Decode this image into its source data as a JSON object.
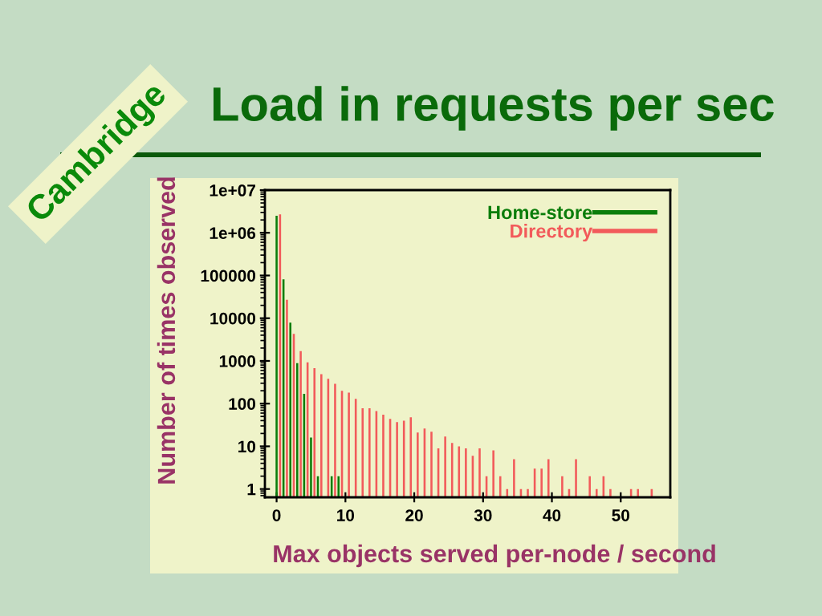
{
  "chart_data": {
    "type": "bar",
    "title": "Load in requests per sec",
    "xlabel": "Max objects served per-node / second",
    "ylabel": "Number of times observed",
    "annotations": [
      "Cambridge"
    ],
    "series": [
      {
        "name": "Home-store",
        "color": "#0b7d0b",
        "x": [
          0,
          1,
          2,
          3,
          4,
          5,
          6,
          8,
          9
        ],
        "values": [
          2500000,
          81000,
          7900,
          890,
          170,
          16,
          2,
          2,
          2
        ]
      },
      {
        "name": "Directory",
        "color": "#f25a5a",
        "x": [
          0.5,
          1.5,
          2.5,
          3.5,
          4.5,
          5.5,
          6.5,
          7.5,
          8.5,
          9.5,
          10.5,
          11.5,
          12.5,
          13.5,
          14.5,
          15.5,
          16.5,
          17.5,
          18.5,
          19.5,
          20.5,
          21.5,
          22.5,
          23.5,
          24.5,
          25.5,
          26.5,
          27.5,
          28.5,
          29.5,
          30.5,
          31.5,
          32.5,
          33.5,
          34.5,
          35.5,
          36.5,
          37.5,
          38.5,
          39.5,
          41.5,
          42.5,
          43.5,
          45.5,
          46.5,
          47.5,
          48.5,
          51.5,
          52.5,
          54.5
        ],
        "values": [
          2700000,
          27000,
          4300,
          1700,
          930,
          680,
          490,
          380,
          290,
          200,
          180,
          130,
          78,
          78,
          67,
          55,
          44,
          37,
          40,
          48,
          21,
          26,
          22,
          9,
          17,
          12,
          10,
          9,
          6,
          9,
          2,
          8,
          2,
          1,
          5,
          1,
          1,
          3,
          3,
          5,
          2,
          1,
          5,
          2,
          1,
          2,
          1,
          1,
          1,
          1
        ]
      }
    ],
    "log": "y",
    "xlim": [
      -1.7,
      57.2
    ],
    "ylim": [
      0.64,
      10000000
    ],
    "xticks": [
      0,
      10,
      20,
      30,
      40,
      50
    ],
    "yticks": [
      1,
      10,
      100,
      1000,
      10000,
      100000,
      {
        "value": 1000000,
        "label": "1e+06"
      },
      {
        "value": 10000000,
        "label": "1e+07"
      }
    ],
    "legend": "top right"
  }
}
